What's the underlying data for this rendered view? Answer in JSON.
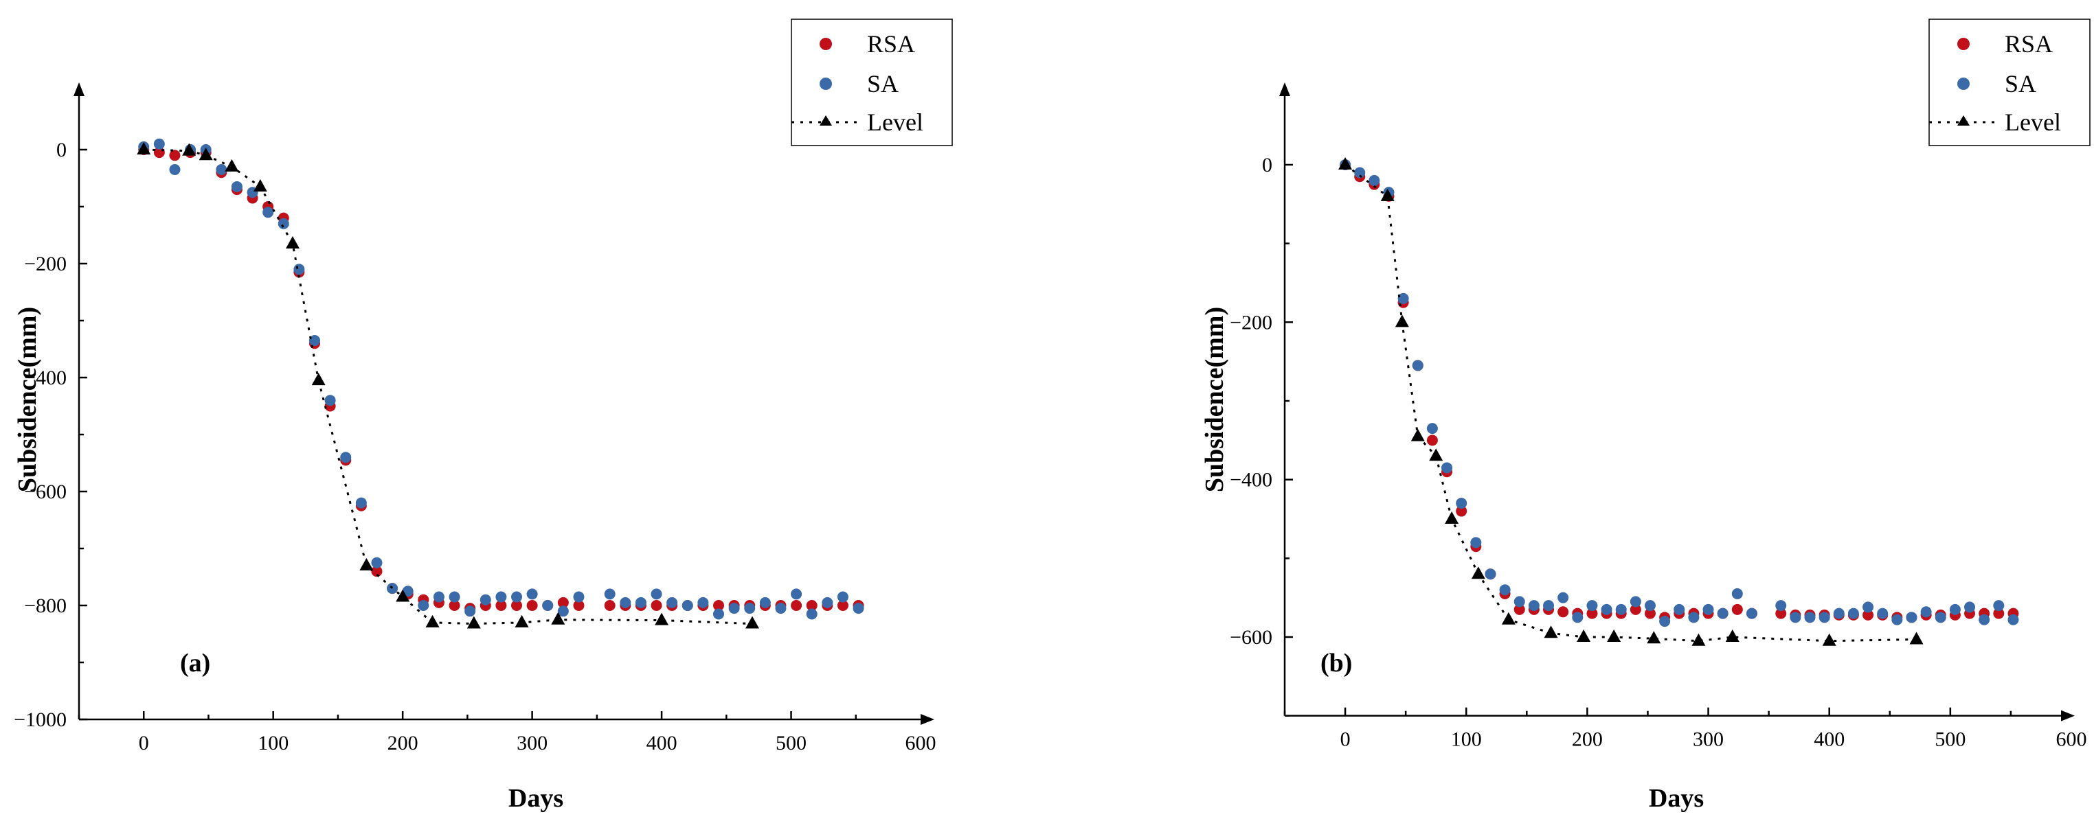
{
  "chart_data": [
    {
      "id": "a",
      "type": "scatter",
      "panel_label": "(a)",
      "xlabel": "Days",
      "ylabel": "Subsidence(mm)",
      "xlim": [
        -50,
        600
      ],
      "ylim": [
        -1000,
        100
      ],
      "xticks": [
        0,
        100,
        200,
        300,
        400,
        500,
        600
      ],
      "xtick_labels": [
        "0",
        "100",
        "200",
        "300",
        "400",
        "500",
        "600"
      ],
      "yticks": [
        0,
        -200,
        -400,
        -600,
        -800,
        -1000
      ],
      "ytick_labels": [
        "0",
        "−200",
        "−400",
        "−600",
        "−800",
        "−1000"
      ],
      "legend_position": "top-right",
      "legend": [
        "RSA",
        "SA",
        "Level"
      ],
      "series": [
        {
          "name": "RSA",
          "marker": "circle",
          "color": "#c0101a",
          "x": [
            0,
            12,
            24,
            36,
            48,
            60,
            72,
            84,
            96,
            108,
            120,
            132,
            144,
            156,
            168,
            180,
            192,
            204,
            216,
            228,
            240,
            252,
            264,
            276,
            288,
            300,
            312,
            324,
            336,
            360,
            372,
            384,
            396,
            408,
            420,
            432,
            444,
            456,
            468,
            480,
            492,
            504,
            516,
            528,
            540,
            552
          ],
          "y": [
            0,
            -5,
            -10,
            -5,
            -5,
            -40,
            -70,
            -85,
            -100,
            -120,
            -215,
            -340,
            -450,
            -545,
            -625,
            -740,
            -770,
            -780,
            -790,
            -795,
            -800,
            -805,
            -800,
            -800,
            -800,
            -800,
            -800,
            -795,
            -800,
            -800,
            -800,
            -800,
            -800,
            -800,
            -800,
            -800,
            -800,
            -800,
            -800,
            -800,
            -800,
            -800,
            -800,
            -800,
            -800,
            -800
          ]
        },
        {
          "name": "SA",
          "marker": "circle",
          "color": "#3b6aa8",
          "x": [
            0,
            12,
            24,
            36,
            48,
            60,
            72,
            84,
            96,
            108,
            120,
            132,
            144,
            156,
            168,
            180,
            192,
            204,
            216,
            228,
            240,
            252,
            264,
            276,
            288,
            300,
            312,
            324,
            336,
            360,
            372,
            384,
            396,
            408,
            420,
            432,
            444,
            456,
            468,
            480,
            492,
            504,
            516,
            528,
            540,
            552
          ],
          "y": [
            5,
            10,
            -35,
            0,
            0,
            -35,
            -65,
            -75,
            -110,
            -130,
            -210,
            -335,
            -440,
            -540,
            -620,
            -725,
            -770,
            -775,
            -800,
            -785,
            -785,
            -810,
            -790,
            -785,
            -785,
            -780,
            -800,
            -810,
            -785,
            -780,
            -795,
            -795,
            -780,
            -795,
            -800,
            -795,
            -815,
            -805,
            -805,
            -795,
            -805,
            -780,
            -815,
            -795,
            -785,
            -805
          ]
        },
        {
          "name": "Level",
          "marker": "triangle",
          "line": "dotted",
          "color": "#000000",
          "x": [
            0,
            35,
            48,
            68,
            90,
            115,
            135,
            172,
            200,
            223,
            255,
            292,
            320,
            400,
            470
          ],
          "y": [
            0,
            -2,
            -10,
            -30,
            -65,
            -165,
            -405,
            -730,
            -785,
            -830,
            -832,
            -830,
            -825,
            -826,
            -832
          ]
        }
      ]
    },
    {
      "id": "b",
      "type": "scatter",
      "panel_label": "(b)",
      "xlabel": "Days",
      "ylabel": "Subsidence(mm)",
      "xlim": [
        -50,
        600
      ],
      "ylim": [
        -700,
        100
      ],
      "xticks": [
        0,
        100,
        200,
        300,
        400,
        500,
        600
      ],
      "xtick_labels": [
        "0",
        "100",
        "200",
        "300",
        "400",
        "500",
        "600"
      ],
      "yticks": [
        0,
        -200,
        -400,
        -600
      ],
      "ytick_labels": [
        "0",
        "−200",
        "−400",
        "−600"
      ],
      "legend_position": "top-right",
      "legend": [
        "RSA",
        "SA",
        "Level"
      ],
      "series": [
        {
          "name": "RSA",
          "marker": "circle",
          "color": "#c0101a",
          "x": [
            0,
            12,
            24,
            36,
            48,
            60,
            72,
            84,
            96,
            108,
            120,
            132,
            144,
            156,
            168,
            180,
            192,
            204,
            216,
            228,
            240,
            252,
            264,
            276,
            288,
            300,
            312,
            324,
            336,
            360,
            372,
            384,
            396,
            408,
            420,
            432,
            444,
            456,
            468,
            480,
            492,
            504,
            516,
            528,
            540,
            552
          ],
          "y": [
            0,
            -15,
            -25,
            -40,
            -175,
            -255,
            -350,
            -390,
            -440,
            -485,
            -520,
            -545,
            -565,
            -565,
            -565,
            -568,
            -570,
            -570,
            -570,
            -570,
            -565,
            -570,
            -575,
            -570,
            -570,
            -570,
            -570,
            -565,
            -570,
            -570,
            -572,
            -572,
            -572,
            -572,
            -572,
            -572,
            -572,
            -575,
            -575,
            -572,
            -572,
            -572,
            -570,
            -570,
            -570,
            -570
          ]
        },
        {
          "name": "SA",
          "marker": "circle",
          "color": "#3b6aa8",
          "x": [
            0,
            12,
            24,
            36,
            48,
            60,
            72,
            84,
            96,
            108,
            120,
            132,
            144,
            156,
            168,
            180,
            192,
            204,
            216,
            228,
            240,
            252,
            264,
            276,
            288,
            300,
            312,
            324,
            336,
            360,
            372,
            384,
            396,
            408,
            420,
            432,
            444,
            456,
            468,
            480,
            492,
            504,
            516,
            528,
            540,
            552
          ],
          "y": [
            0,
            -10,
            -20,
            -35,
            -170,
            -255,
            -335,
            -385,
            -430,
            -480,
            -520,
            -540,
            -555,
            -560,
            -560,
            -550,
            -575,
            -560,
            -565,
            -565,
            -555,
            -560,
            -580,
            -565,
            -575,
            -565,
            -570,
            -545,
            -570,
            -560,
            -575,
            -575,
            -575,
            -570,
            -570,
            -562,
            -570,
            -578,
            -575,
            -568,
            -575,
            -565,
            -562,
            -578,
            -560,
            -578
          ]
        },
        {
          "name": "Level",
          "marker": "triangle",
          "line": "dotted",
          "color": "#000000",
          "x": [
            0,
            35,
            47,
            60,
            75,
            88,
            110,
            135,
            170,
            197,
            222,
            255,
            292,
            320,
            400,
            472
          ],
          "y": [
            0,
            -40,
            -200,
            -345,
            -370,
            -450,
            -520,
            -578,
            -595,
            -600,
            -600,
            -602,
            -605,
            -600,
            -605,
            -603
          ]
        }
      ]
    }
  ]
}
